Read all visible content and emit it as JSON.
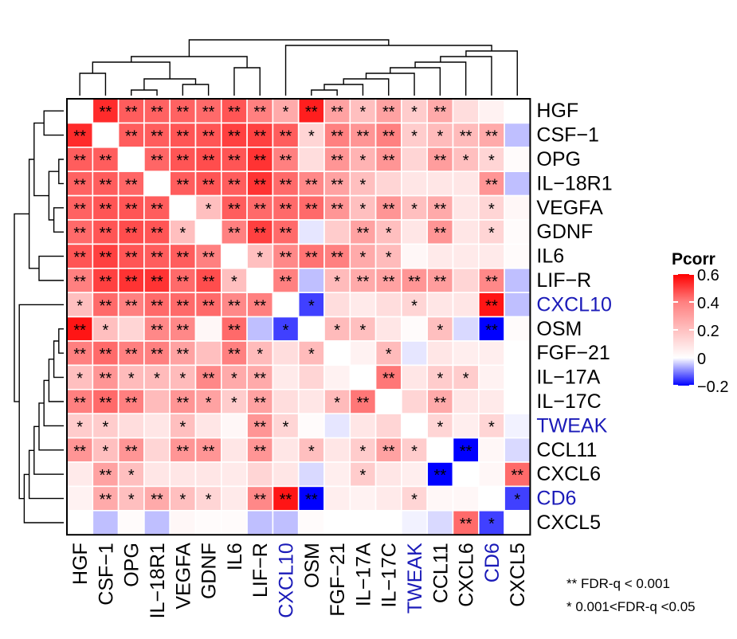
{
  "chart_data": {
    "type": "heatmap",
    "labels": [
      "HGF",
      "CSF-1",
      "OPG",
      "IL-18R1",
      "VEGFA",
      "GDNF",
      "IL6",
      "LIF-R",
      "CXCL10",
      "OSM",
      "FGF-21",
      "IL-17A",
      "IL-17C",
      "TWEAK",
      "CCL11",
      "CXCL6",
      "CD6",
      "CXCL5"
    ],
    "highlighted_labels": [
      "CXCL10",
      "TWEAK",
      "CD6"
    ],
    "label_color_default": "#000000",
    "label_color_highlight": "#1a1ab8",
    "colorscale": {
      "title": "Pcorr",
      "min": -0.2,
      "max": 0.6,
      "ticks": [
        0.6,
        0.4,
        0.2,
        0,
        -0.2
      ],
      "tick_labels": [
        "0.6",
        "0.4",
        "0.2",
        "0",
        "−0.2"
      ],
      "color_low": "#0000ff",
      "color_mid": "#ffffff",
      "color_high": "#ff0000"
    },
    "values": [
      [
        null,
        0.5,
        0.38,
        0.37,
        0.37,
        0.35,
        0.4,
        0.3,
        0.2,
        0.53,
        0.22,
        0.15,
        0.22,
        0.12,
        0.2,
        0.08,
        0.03,
        0.0
      ],
      [
        0.5,
        null,
        0.38,
        0.38,
        0.4,
        0.4,
        0.45,
        0.45,
        0.38,
        0.1,
        0.3,
        0.25,
        0.3,
        0.12,
        0.16,
        0.16,
        0.2,
        -0.05
      ],
      [
        0.38,
        0.38,
        null,
        0.36,
        0.4,
        0.42,
        0.4,
        0.48,
        0.3,
        0.08,
        0.25,
        0.18,
        0.25,
        0.1,
        0.23,
        0.15,
        0.1,
        0.01
      ],
      [
        0.37,
        0.38,
        0.36,
        null,
        0.38,
        0.4,
        0.38,
        0.48,
        0.35,
        0.28,
        0.22,
        0.15,
        0.1,
        0.06,
        0.06,
        0.06,
        0.25,
        -0.05
      ],
      [
        0.37,
        0.4,
        0.4,
        0.38,
        null,
        0.15,
        0.38,
        0.35,
        0.35,
        0.35,
        0.25,
        0.15,
        0.25,
        0.15,
        0.2,
        0.06,
        0.1,
        0.02
      ],
      [
        0.35,
        0.4,
        0.42,
        0.4,
        0.15,
        null,
        0.3,
        0.45,
        0.35,
        -0.02,
        0.12,
        0.22,
        0.15,
        0.06,
        0.25,
        0.06,
        0.1,
        0.01
      ],
      [
        0.4,
        0.45,
        0.4,
        0.38,
        0.38,
        0.3,
        null,
        0.15,
        0.28,
        0.33,
        0.3,
        0.2,
        0.16,
        0.02,
        0.05,
        0.05,
        0.05,
        0.01
      ],
      [
        0.3,
        0.45,
        0.48,
        0.48,
        0.35,
        0.42,
        0.15,
        null,
        0.3,
        -0.05,
        0.16,
        0.2,
        0.22,
        0.25,
        0.23,
        0.1,
        0.28,
        -0.05
      ],
      [
        0.15,
        0.35,
        0.3,
        0.35,
        0.35,
        0.35,
        0.28,
        0.3,
        null,
        -0.15,
        0.08,
        0.05,
        0.08,
        0.1,
        0.06,
        0.06,
        0.55,
        -0.05
      ],
      [
        0.55,
        0.15,
        0.1,
        0.28,
        0.28,
        0.02,
        0.35,
        -0.05,
        -0.15,
        null,
        0.16,
        0.15,
        0.06,
        0.01,
        0.15,
        -0.03,
        -0.22,
        0.01
      ],
      [
        0.3,
        0.35,
        0.3,
        0.3,
        0.22,
        0.15,
        0.3,
        0.16,
        0.08,
        0.16,
        null,
        0.03,
        0.16,
        -0.02,
        0.06,
        0.04,
        0.04,
        0.0
      ],
      [
        0.15,
        0.25,
        0.16,
        0.16,
        0.16,
        0.28,
        0.2,
        0.2,
        0.05,
        0.1,
        0.03,
        null,
        0.32,
        0.06,
        0.12,
        0.12,
        0.03,
        0.0
      ],
      [
        0.3,
        0.35,
        0.3,
        0.16,
        0.25,
        0.22,
        0.12,
        0.22,
        0.08,
        0.06,
        0.16,
        0.32,
        null,
        0.1,
        0.2,
        0.06,
        0.05,
        0.0
      ],
      [
        0.12,
        0.12,
        0.08,
        0.06,
        0.15,
        0.06,
        0.02,
        0.25,
        0.1,
        0.01,
        -0.02,
        0.06,
        0.1,
        null,
        0.1,
        0.04,
        0.1,
        -0.01
      ],
      [
        0.25,
        0.15,
        0.25,
        0.1,
        0.25,
        0.25,
        0.06,
        0.25,
        0.06,
        0.15,
        0.06,
        0.12,
        0.22,
        0.12,
        null,
        -0.25,
        0.02,
        -0.03
      ],
      [
        0.05,
        0.22,
        0.15,
        0.06,
        0.06,
        0.06,
        0.05,
        0.1,
        0.06,
        -0.03,
        0.04,
        0.12,
        0.06,
        0.04,
        -0.25,
        null,
        0.02,
        0.35
      ],
      [
        0.03,
        0.2,
        0.15,
        0.2,
        0.15,
        0.1,
        0.05,
        0.28,
        0.55,
        -0.22,
        0.04,
        0.03,
        0.05,
        0.1,
        0.02,
        0.02,
        null,
        -0.15
      ],
      [
        0.0,
        -0.05,
        0.01,
        -0.05,
        0.02,
        0.01,
        0.01,
        -0.05,
        -0.05,
        0.01,
        0.0,
        0.0,
        0.0,
        -0.01,
        -0.03,
        0.35,
        -0.15,
        null
      ]
    ],
    "significance": [
      [
        "",
        "**",
        "**",
        "**",
        "**",
        "**",
        "**",
        "**",
        "*",
        "**",
        "**",
        "*",
        "**",
        "*",
        "**",
        "",
        "",
        ""
      ],
      [
        "**",
        "",
        "**",
        "**",
        "**",
        "**",
        "**",
        "**",
        "**",
        "*",
        "**",
        "**",
        "**",
        "*",
        "*",
        "**",
        "**",
        ""
      ],
      [
        "**",
        "**",
        "",
        "**",
        "**",
        "**",
        "**",
        "**",
        "**",
        "",
        "**",
        "*",
        "**",
        "",
        "**",
        "*",
        "*",
        ""
      ],
      [
        "**",
        "**",
        "**",
        "",
        "**",
        "**",
        "**",
        "**",
        "**",
        "**",
        "**",
        "*",
        "",
        "",
        "",
        "",
        "**",
        ""
      ],
      [
        "**",
        "**",
        "**",
        "**",
        "",
        "*",
        "**",
        "**",
        "**",
        "**",
        "**",
        "*",
        "**",
        "*",
        "**",
        "",
        "*",
        ""
      ],
      [
        "**",
        "**",
        "**",
        "**",
        "*",
        "",
        "**",
        "**",
        "**",
        "",
        "",
        "**",
        "*",
        "",
        "**",
        "",
        "*",
        ""
      ],
      [
        "**",
        "**",
        "**",
        "**",
        "**",
        "**",
        "",
        "*",
        "**",
        "**",
        "**",
        "*",
        "*",
        "",
        "",
        "",
        "",
        ""
      ],
      [
        "**",
        "**",
        "**",
        "**",
        "**",
        "**",
        "*",
        "",
        "**",
        "",
        "*",
        "**",
        "**",
        "**",
        "**",
        "",
        "**",
        ""
      ],
      [
        "*",
        "**",
        "**",
        "**",
        "**",
        "**",
        "**",
        "**",
        "",
        "*",
        "",
        "",
        "",
        "*",
        "",
        "",
        "**",
        ""
      ],
      [
        "**",
        "*",
        "",
        "**",
        "**",
        "",
        "**",
        "",
        "*",
        "",
        "*",
        "*",
        "",
        "",
        "*",
        "",
        "**",
        ""
      ],
      [
        "**",
        "**",
        "**",
        "**",
        "**",
        "",
        "**",
        "*",
        "",
        "*",
        "",
        "",
        "*",
        "",
        "",
        "",
        "",
        ""
      ],
      [
        "*",
        "**",
        "*",
        "*",
        "*",
        "**",
        "*",
        "**",
        "",
        "",
        "",
        "",
        "**",
        "",
        "*",
        "*",
        "",
        ""
      ],
      [
        "**",
        "**",
        "**",
        "",
        "**",
        "*",
        "*",
        "**",
        "",
        "",
        "*",
        "**",
        "",
        "",
        "**",
        "",
        "",
        ""
      ],
      [
        "*",
        "*",
        "",
        "",
        "*",
        "",
        "",
        "**",
        "*",
        "",
        "",
        "",
        "",
        "",
        "*",
        "",
        "*",
        ""
      ],
      [
        "**",
        "*",
        "**",
        "",
        "**",
        "**",
        "",
        "**",
        "",
        "*",
        "",
        "*",
        "**",
        "*",
        "",
        "**",
        "",
        ""
      ],
      [
        "",
        "**",
        "*",
        "",
        "",
        "",
        "",
        "",
        "",
        "",
        "",
        "*",
        "",
        "",
        "**",
        "",
        "",
        "**"
      ],
      [
        "",
        "**",
        "*",
        "**",
        "*",
        "*",
        "",
        "**",
        "**",
        "**",
        "",
        "",
        "",
        "*",
        "",
        "",
        "",
        "*"
      ],
      [
        "",
        "",
        "",
        "",
        "",
        "",
        "",
        "",
        "",
        "",
        "",
        "",
        "",
        "",
        "",
        "**",
        "*",
        ""
      ]
    ],
    "dendrogram_leaf_order": [
      "HGF",
      "CSF-1",
      "OPG",
      "IL-18R1",
      "VEGFA",
      "GDNF",
      "IL6",
      "LIF-R",
      "CXCL10",
      "OSM",
      "FGF-21",
      "IL-17A",
      "IL-17C",
      "TWEAK",
      "CCL11",
      "CXCL6",
      "CD6",
      "CXCL5"
    ],
    "grid": true,
    "legend_position": "right"
  },
  "legend": {
    "title": "Pcorr",
    "notes": [
      "** FDR-q < 0.001",
      "* 0.001<FDR-q <0.05"
    ]
  }
}
